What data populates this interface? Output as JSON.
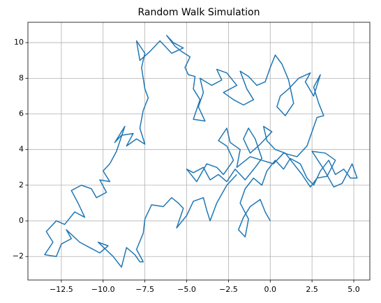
{
  "chart_data": {
    "type": "line",
    "title": "Random Walk Simulation",
    "color": "#1f77b4",
    "grid": true,
    "xlim": [
      -14.5,
      5.96
    ],
    "ylim": [
      -3.32,
      11.14
    ],
    "xticks": [
      {
        "value": -12.5,
        "label": "−12.5"
      },
      {
        "value": -10,
        "label": "−10.0"
      },
      {
        "value": -7.5,
        "label": "−7.5"
      },
      {
        "value": -5,
        "label": "−5.0"
      },
      {
        "value": -2.5,
        "label": "−2.5"
      },
      {
        "value": 0,
        "label": "0.0"
      },
      {
        "value": 2.5,
        "label": "2.5"
      },
      {
        "value": 5,
        "label": "5.0"
      }
    ],
    "yticks": [
      {
        "value": -2,
        "label": "−2"
      },
      0,
      2,
      4,
      6,
      8,
      10
    ],
    "x": [
      0,
      -0.3,
      -0.6,
      -1.2,
      -1.6,
      -1.9,
      -1.5,
      -1.3,
      -1.8,
      -1.5,
      -1.0,
      -0.5,
      -0.2,
      0.3,
      0.8,
      1.2,
      1.8,
      2.2,
      2.6,
      3.0,
      3.5,
      3.9,
      4.4,
      4.8,
      5.2,
      4.9,
      4.3,
      3.8,
      3.2,
      2.5,
      3.3,
      3.9,
      3.4,
      2.8,
      2.4,
      1.9,
      1.4,
      0.9,
      0.3,
      -0.2,
      -0.4,
      0.1,
      -0.6,
      -1.2,
      -1.6,
      -1.3,
      -0.9,
      -0.5,
      -0.9,
      -1.5,
      -2.1,
      -2.6,
      -3.1,
      -3.6,
      -4.0,
      -4.6,
      -5.0,
      -4.4,
      -3.8,
      -3.2,
      -2.8,
      -2.2,
      -2.6,
      -3.1,
      -2.6,
      -2.4,
      -1.8,
      -2.0,
      -1.2,
      0.2,
      0.8,
      1.6,
      2.2,
      2.5,
      2.8,
      3.2,
      2.9,
      2.6,
      3.0,
      2.6,
      2.1,
      2.4,
      1.7,
      1.1,
      0.6,
      0.4,
      0.9,
      1.4,
      1.1,
      0.7,
      0.3,
      0.0,
      -0.3,
      -0.8,
      -1.3,
      -1.8,
      -1.4,
      -1.0,
      -1.6,
      -2.2,
      -2.8,
      -2.0,
      -2.6,
      -3.2,
      -2.9,
      -3.5,
      -4.2,
      -4.0,
      -4.3,
      -3.9,
      -4.6,
      -4.2,
      -4.6,
      -4.5,
      -4.9,
      -5.1,
      -4.8,
      -5.3,
      -5.7,
      -6.2,
      -5.8,
      -5.2,
      -5.9,
      -6.6,
      -7.2,
      -7.8,
      -8.0,
      -7.5,
      -7.7,
      -7.5,
      -7.3,
      -7.6,
      -7.8,
      -7.5,
      -8.0,
      -8.6,
      -8.2,
      -8.9,
      -9.3,
      -8.7,
      -9.2,
      -9.6,
      -10.0,
      -9.6,
      -10.2,
      -9.8,
      -10.4,
      -10.7,
      -11.3,
      -11.9,
      -11.5,
      -11.1,
      -11.7,
      -12.3,
      -12.8,
      -13.4,
      -13.0,
      -13.5,
      -12.8,
      -12.5,
      -11.9,
      -12.2,
      -11.4,
      -10.8,
      -10.2,
      -9.7,
      -10.3,
      -9.4,
      -8.9,
      -8.6,
      -8.1,
      -7.8,
      -7.6,
      -8.0,
      -7.6,
      -7.5,
      -7.1,
      -6.4,
      -5.9,
      -5.5,
      -5.2,
      -5.6,
      -5.0,
      -4.6,
      -4.0,
      -3.8,
      -3.6,
      -3.2,
      -2.6,
      -2.0
    ],
    "values": [
      0,
      0.5,
      1.2,
      0.8,
      0.2,
      -0.5,
      -0.9,
      0.1,
      1.0,
      1.8,
      2.4,
      2.0,
      2.8,
      3.4,
      2.9,
      3.5,
      3.2,
      2.4,
      2.0,
      2.8,
      3.4,
      2.6,
      2.9,
      2.4,
      2.4,
      3.2,
      2.1,
      1.9,
      2.9,
      3.9,
      3.8,
      3.4,
      2.5,
      2.4,
      1.9,
      2.6,
      3.2,
      3.8,
      4.0,
      4.5,
      5.3,
      5.0,
      4.3,
      3.8,
      4.6,
      5.2,
      4.6,
      3.5,
      3.0,
      2.3,
      2.9,
      2.2,
      2.6,
      2.3,
      3.0,
      2.7,
      2.9,
      2.2,
      3.2,
      3.0,
      2.6,
      3.4,
      4.2,
      4.5,
      5.2,
      4.4,
      4.0,
      3.0,
      3.6,
      3.2,
      3.8,
      3.6,
      4.2,
      5.0,
      5.8,
      5.9,
      6.6,
      7.5,
      8.2,
      7.0,
      7.8,
      8.3,
      8.0,
      7.4,
      7.0,
      6.4,
      5.9,
      6.6,
      7.9,
      8.8,
      9.3,
      8.6,
      7.8,
      7.6,
      8.1,
      8.4,
      7.4,
      6.8,
      6.5,
      6.8,
      7.2,
      7.6,
      8.3,
      8.5,
      7.9,
      7.6,
      8.0,
      7.2,
      6.4,
      5.6,
      5.7,
      6.8,
      7.4,
      8.1,
      8.2,
      8.6,
      9.2,
      9.5,
      9.8,
      10.4,
      10.0,
      9.7,
      9.4,
      10.1,
      9.5,
      9.0,
      10.1,
      9.4,
      8.6,
      7.4,
      6.9,
      6.2,
      5.2,
      4.3,
      4.6,
      4.2,
      4.9,
      4.8,
      4.4,
      5.3,
      3.9,
      3.2,
      2.8,
      2.2,
      2.3,
      1.6,
      1.3,
      1.8,
      2.0,
      1.7,
      1.0,
      0.2,
      0.5,
      -0.2,
      0.0,
      -0.6,
      -1.2,
      -1.9,
      -2.0,
      -1.3,
      -1.0,
      -0.5,
      -1.2,
      -1.5,
      -1.8,
      -1.4,
      -1.2,
      -2.0,
      -2.6,
      -1.5,
      -1.9,
      -2.3,
      -2.3,
      -1.6,
      -0.7,
      0.1,
      0.9,
      0.8,
      1.3,
      1.0,
      0.7,
      -0.4,
      0.3,
      1.1,
      1.3,
      0.6,
      0.0,
      1.0,
      2.0,
      2.6
    ]
  }
}
